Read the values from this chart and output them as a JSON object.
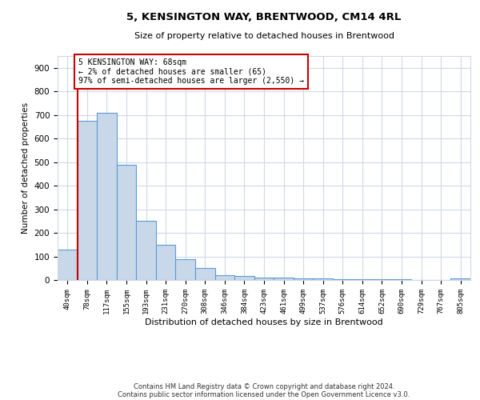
{
  "title": "5, KENSINGTON WAY, BRENTWOOD, CM14 4RL",
  "subtitle": "Size of property relative to detached houses in Brentwood",
  "xlabel": "Distribution of detached houses by size in Brentwood",
  "ylabel": "Number of detached properties",
  "categories": [
    "40sqm",
    "78sqm",
    "117sqm",
    "155sqm",
    "193sqm",
    "231sqm",
    "270sqm",
    "308sqm",
    "346sqm",
    "384sqm",
    "423sqm",
    "461sqm",
    "499sqm",
    "537sqm",
    "576sqm",
    "614sqm",
    "652sqm",
    "690sqm",
    "729sqm",
    "767sqm",
    "805sqm"
  ],
  "bar_heights": [
    130,
    675,
    710,
    490,
    250,
    148,
    88,
    52,
    22,
    18,
    10,
    10,
    8,
    7,
    5,
    4,
    4,
    4,
    0,
    0,
    8
  ],
  "bar_color": "#c8d8e8",
  "bar_edgecolor": "#5b9bd5",
  "property_line_color": "#cc0000",
  "annotation_text": "5 KENSINGTON WAY: 68sqm\n← 2% of detached houses are smaller (65)\n97% of semi-detached houses are larger (2,550) →",
  "annotation_box_color": "#cc0000",
  "ylim": [
    0,
    950
  ],
  "footnote1": "Contains HM Land Registry data © Crown copyright and database right 2024.",
  "footnote2": "Contains public sector information licensed under the Open Government Licence v3.0.",
  "background_color": "#ffffff",
  "grid_color": "#d0d8e8"
}
